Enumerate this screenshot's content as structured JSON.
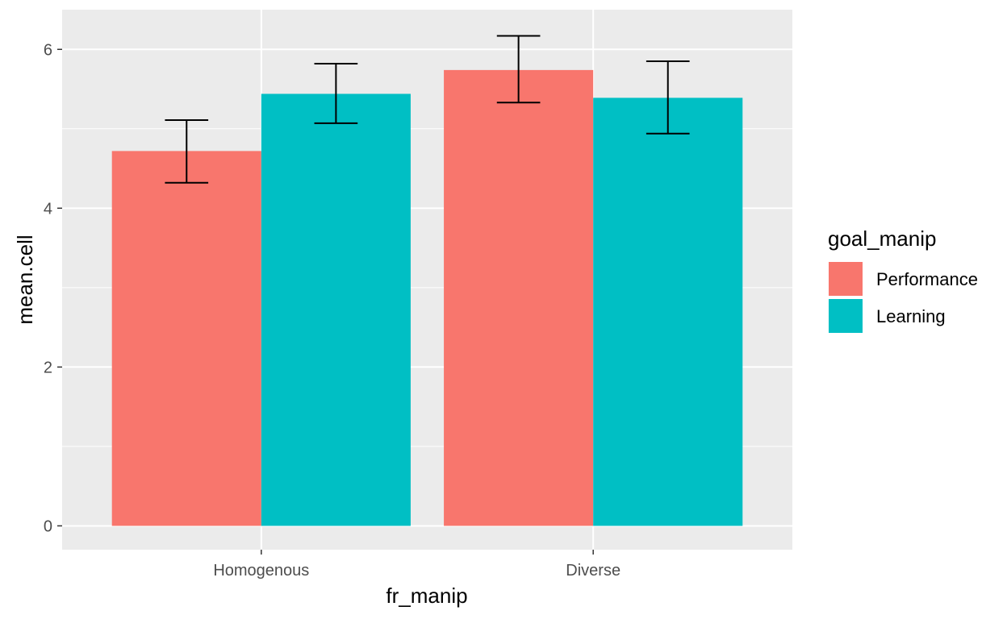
{
  "chart_data": {
    "type": "bar",
    "title": "",
    "xlabel": "fr_manip",
    "ylabel": "mean.cell",
    "categories": [
      "Homogenous",
      "Diverse"
    ],
    "series": [
      {
        "name": "Performance",
        "color": "#F8766D",
        "values": [
          4.72,
          5.74
        ],
        "error_low": [
          4.32,
          5.33
        ],
        "error_high": [
          5.11,
          6.17
        ]
      },
      {
        "name": "Learning",
        "color": "#00BFC4",
        "values": [
          5.44,
          5.39
        ],
        "error_low": [
          5.07,
          4.94
        ],
        "error_high": [
          5.82,
          5.85
        ]
      }
    ],
    "ylim": [
      -0.3,
      6.5
    ],
    "yticks": [
      0,
      2,
      4,
      6
    ],
    "ytick_labels": [
      "0",
      "2",
      "4",
      "6"
    ],
    "grid": true,
    "panel_background": "#EBEBEB",
    "legend": {
      "title": "goal_manip",
      "placement": "right"
    }
  }
}
